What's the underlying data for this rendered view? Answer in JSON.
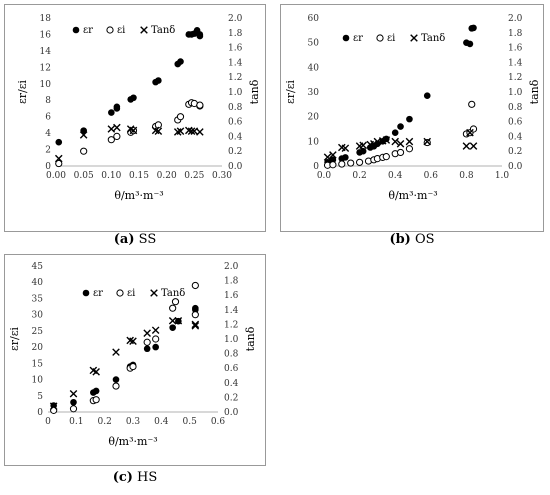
{
  "labels": {
    "y_left": "εr/εi",
    "y_right": "tanδ",
    "x": "θ/m³·m⁻³"
  },
  "captions": [
    {
      "tag": "(a)",
      "name": "SS"
    },
    {
      "tag": "(b)",
      "name": "OS"
    },
    {
      "tag": "(c)",
      "name": "HS"
    }
  ],
  "chart_data": [
    {
      "type": "scatter",
      "panel": "SS",
      "xlim": [
        0,
        0.3
      ],
      "xticks": [
        "0.00",
        "0.05",
        "0.10",
        "0.15",
        "0.20",
        "0.25",
        "0.30"
      ],
      "ylim": [
        0,
        18
      ],
      "yticks": [
        "0",
        "2",
        "4",
        "6",
        "8",
        "10",
        "12",
        "14",
        "16",
        "18"
      ],
      "y2lim": [
        0,
        2.0
      ],
      "y2ticks": [
        "0.0",
        "0.2",
        "0.4",
        "0.6",
        "0.8",
        "1.0",
        "1.2",
        "1.4",
        "1.6",
        "1.8",
        "2.0"
      ],
      "legend_position": "top-left",
      "grid": false,
      "series": [
        {
          "name": "εr",
          "marker": "filled-circle",
          "axis": "left",
          "points": [
            [
              0.005,
              2.9
            ],
            [
              0.05,
              4.3
            ],
            [
              0.1,
              6.5
            ],
            [
              0.11,
              7.0
            ],
            [
              0.11,
              7.2
            ],
            [
              0.135,
              8.1
            ],
            [
              0.14,
              8.3
            ],
            [
              0.18,
              10.2
            ],
            [
              0.185,
              10.4
            ],
            [
              0.22,
              12.4
            ],
            [
              0.225,
              12.7
            ],
            [
              0.24,
              16.0
            ],
            [
              0.245,
              16.0
            ],
            [
              0.25,
              16.1
            ],
            [
              0.255,
              16.5
            ],
            [
              0.26,
              16.0
            ],
            [
              0.26,
              15.8
            ]
          ]
        },
        {
          "name": "εi",
          "marker": "open-circle",
          "axis": "left",
          "points": [
            [
              0.005,
              0.3
            ],
            [
              0.05,
              1.8
            ],
            [
              0.1,
              3.2
            ],
            [
              0.11,
              3.6
            ],
            [
              0.135,
              4.1
            ],
            [
              0.14,
              4.3
            ],
            [
              0.18,
              4.8
            ],
            [
              0.185,
              5.0
            ],
            [
              0.22,
              5.6
            ],
            [
              0.225,
              6.0
            ],
            [
              0.24,
              7.5
            ],
            [
              0.245,
              7.7
            ],
            [
              0.25,
              7.6
            ],
            [
              0.26,
              7.3
            ],
            [
              0.26,
              7.4
            ]
          ]
        },
        {
          "name": "Tanδ",
          "marker": "x",
          "axis": "right",
          "points": [
            [
              0.005,
              0.1
            ],
            [
              0.05,
              0.42
            ],
            [
              0.1,
              0.5
            ],
            [
              0.11,
              0.52
            ],
            [
              0.135,
              0.5
            ],
            [
              0.14,
              0.48
            ],
            [
              0.18,
              0.48
            ],
            [
              0.185,
              0.47
            ],
            [
              0.22,
              0.46
            ],
            [
              0.225,
              0.47
            ],
            [
              0.24,
              0.48
            ],
            [
              0.245,
              0.47
            ],
            [
              0.25,
              0.47
            ],
            [
              0.26,
              0.46
            ]
          ]
        }
      ]
    },
    {
      "type": "scatter",
      "panel": "OS",
      "xlim": [
        0,
        1.0
      ],
      "xticks": [
        "0.0",
        "0.2",
        "0.4",
        "0.6",
        "0.8",
        "1.0"
      ],
      "ylim": [
        0,
        60
      ],
      "yticks": [
        "0",
        "10",
        "20",
        "30",
        "40",
        "50",
        "60"
      ],
      "y2lim": [
        0,
        2.0
      ],
      "y2ticks": [
        "0.0",
        "0.2",
        "0.4",
        "0.6",
        "0.8",
        "1.0",
        "1.2",
        "1.4",
        "1.6",
        "1.8",
        "2.0"
      ],
      "legend_position": "top-left",
      "grid": false,
      "series": [
        {
          "name": "εr",
          "marker": "filled-circle",
          "axis": "left",
          "points": [
            [
              0.02,
              1.5
            ],
            [
              0.05,
              2.5
            ],
            [
              0.1,
              3.0
            ],
            [
              0.12,
              3.5
            ],
            [
              0.2,
              5.5
            ],
            [
              0.22,
              6.0
            ],
            [
              0.26,
              7.5
            ],
            [
              0.28,
              8.0
            ],
            [
              0.3,
              9.0
            ],
            [
              0.33,
              10.0
            ],
            [
              0.35,
              11.0
            ],
            [
              0.4,
              13.5
            ],
            [
              0.43,
              16.0
            ],
            [
              0.48,
              19.0
            ],
            [
              0.58,
              28.5
            ],
            [
              0.8,
              50.0
            ],
            [
              0.82,
              49.5
            ],
            [
              0.83,
              55.8
            ],
            [
              0.84,
              56.0
            ]
          ]
        },
        {
          "name": "εi",
          "marker": "open-circle",
          "axis": "left",
          "points": [
            [
              0.02,
              0.3
            ],
            [
              0.05,
              0.5
            ],
            [
              0.1,
              0.8
            ],
            [
              0.15,
              1.2
            ],
            [
              0.2,
              1.5
            ],
            [
              0.25,
              2.0
            ],
            [
              0.28,
              2.5
            ],
            [
              0.3,
              3.0
            ],
            [
              0.33,
              3.5
            ],
            [
              0.35,
              3.8
            ],
            [
              0.4,
              5.0
            ],
            [
              0.43,
              5.5
            ],
            [
              0.48,
              7.0
            ],
            [
              0.58,
              9.5
            ],
            [
              0.8,
              13.0
            ],
            [
              0.82,
              13.5
            ],
            [
              0.83,
              25.0
            ],
            [
              0.84,
              15.0
            ]
          ]
        },
        {
          "name": "Tanδ",
          "marker": "x",
          "axis": "right",
          "points": [
            [
              0.02,
              0.12
            ],
            [
              0.05,
              0.15
            ],
            [
              0.1,
              0.25
            ],
            [
              0.12,
              0.24
            ],
            [
              0.2,
              0.27
            ],
            [
              0.22,
              0.28
            ],
            [
              0.26,
              0.29
            ],
            [
              0.28,
              0.3
            ],
            [
              0.3,
              0.33
            ],
            [
              0.33,
              0.34
            ],
            [
              0.35,
              0.35
            ],
            [
              0.4,
              0.33
            ],
            [
              0.43,
              0.3
            ],
            [
              0.48,
              0.33
            ],
            [
              0.58,
              0.33
            ],
            [
              0.8,
              0.27
            ],
            [
              0.82,
              0.45
            ],
            [
              0.84,
              0.27
            ]
          ]
        }
      ]
    },
    {
      "type": "scatter",
      "panel": "HS",
      "xlim": [
        0,
        0.6
      ],
      "xticks": [
        "0",
        "0.1",
        "0.2",
        "0.3",
        "0.4",
        "0.5",
        "0.6"
      ],
      "ylim": [
        0,
        45
      ],
      "yticks": [
        "0",
        "5",
        "10",
        "15",
        "20",
        "25",
        "30",
        "35",
        "40",
        "45"
      ],
      "y2lim": [
        0,
        2.0
      ],
      "y2ticks": [
        "0.0",
        "0.2",
        "0.4",
        "0.6",
        "0.8",
        "1.0",
        "1.2",
        "1.4",
        "1.6",
        "1.8",
        "2.0"
      ],
      "legend_position": "top-left",
      "grid": false,
      "series": [
        {
          "name": "εr",
          "marker": "filled-circle",
          "axis": "left",
          "points": [
            [
              0.02,
              2.0
            ],
            [
              0.09,
              3.0
            ],
            [
              0.16,
              6.0
            ],
            [
              0.17,
              6.5
            ],
            [
              0.24,
              10.0
            ],
            [
              0.29,
              14.0
            ],
            [
              0.3,
              14.5
            ],
            [
              0.35,
              19.5
            ],
            [
              0.38,
              20.0
            ],
            [
              0.44,
              26.0
            ],
            [
              0.46,
              28.0
            ],
            [
              0.52,
              31.5
            ],
            [
              0.52,
              32.0
            ]
          ]
        },
        {
          "name": "εi",
          "marker": "open-circle",
          "axis": "left",
          "points": [
            [
              0.02,
              0.5
            ],
            [
              0.09,
              1.0
            ],
            [
              0.16,
              3.5
            ],
            [
              0.17,
              3.8
            ],
            [
              0.24,
              8.0
            ],
            [
              0.29,
              13.5
            ],
            [
              0.3,
              14.0
            ],
            [
              0.35,
              21.5
            ],
            [
              0.38,
              22.5
            ],
            [
              0.44,
              32.0
            ],
            [
              0.45,
              34.0
            ],
            [
              0.52,
              39.0
            ],
            [
              0.52,
              30.0
            ]
          ]
        },
        {
          "name": "Tanδ",
          "marker": "x",
          "axis": "right",
          "points": [
            [
              0.02,
              0.08
            ],
            [
              0.09,
              0.25
            ],
            [
              0.16,
              0.57
            ],
            [
              0.17,
              0.55
            ],
            [
              0.24,
              0.82
            ],
            [
              0.29,
              0.98
            ],
            [
              0.3,
              0.97
            ],
            [
              0.35,
              1.08
            ],
            [
              0.38,
              1.12
            ],
            [
              0.44,
              1.25
            ],
            [
              0.46,
              1.25
            ],
            [
              0.52,
              1.2
            ],
            [
              0.52,
              1.18
            ]
          ]
        }
      ]
    }
  ]
}
